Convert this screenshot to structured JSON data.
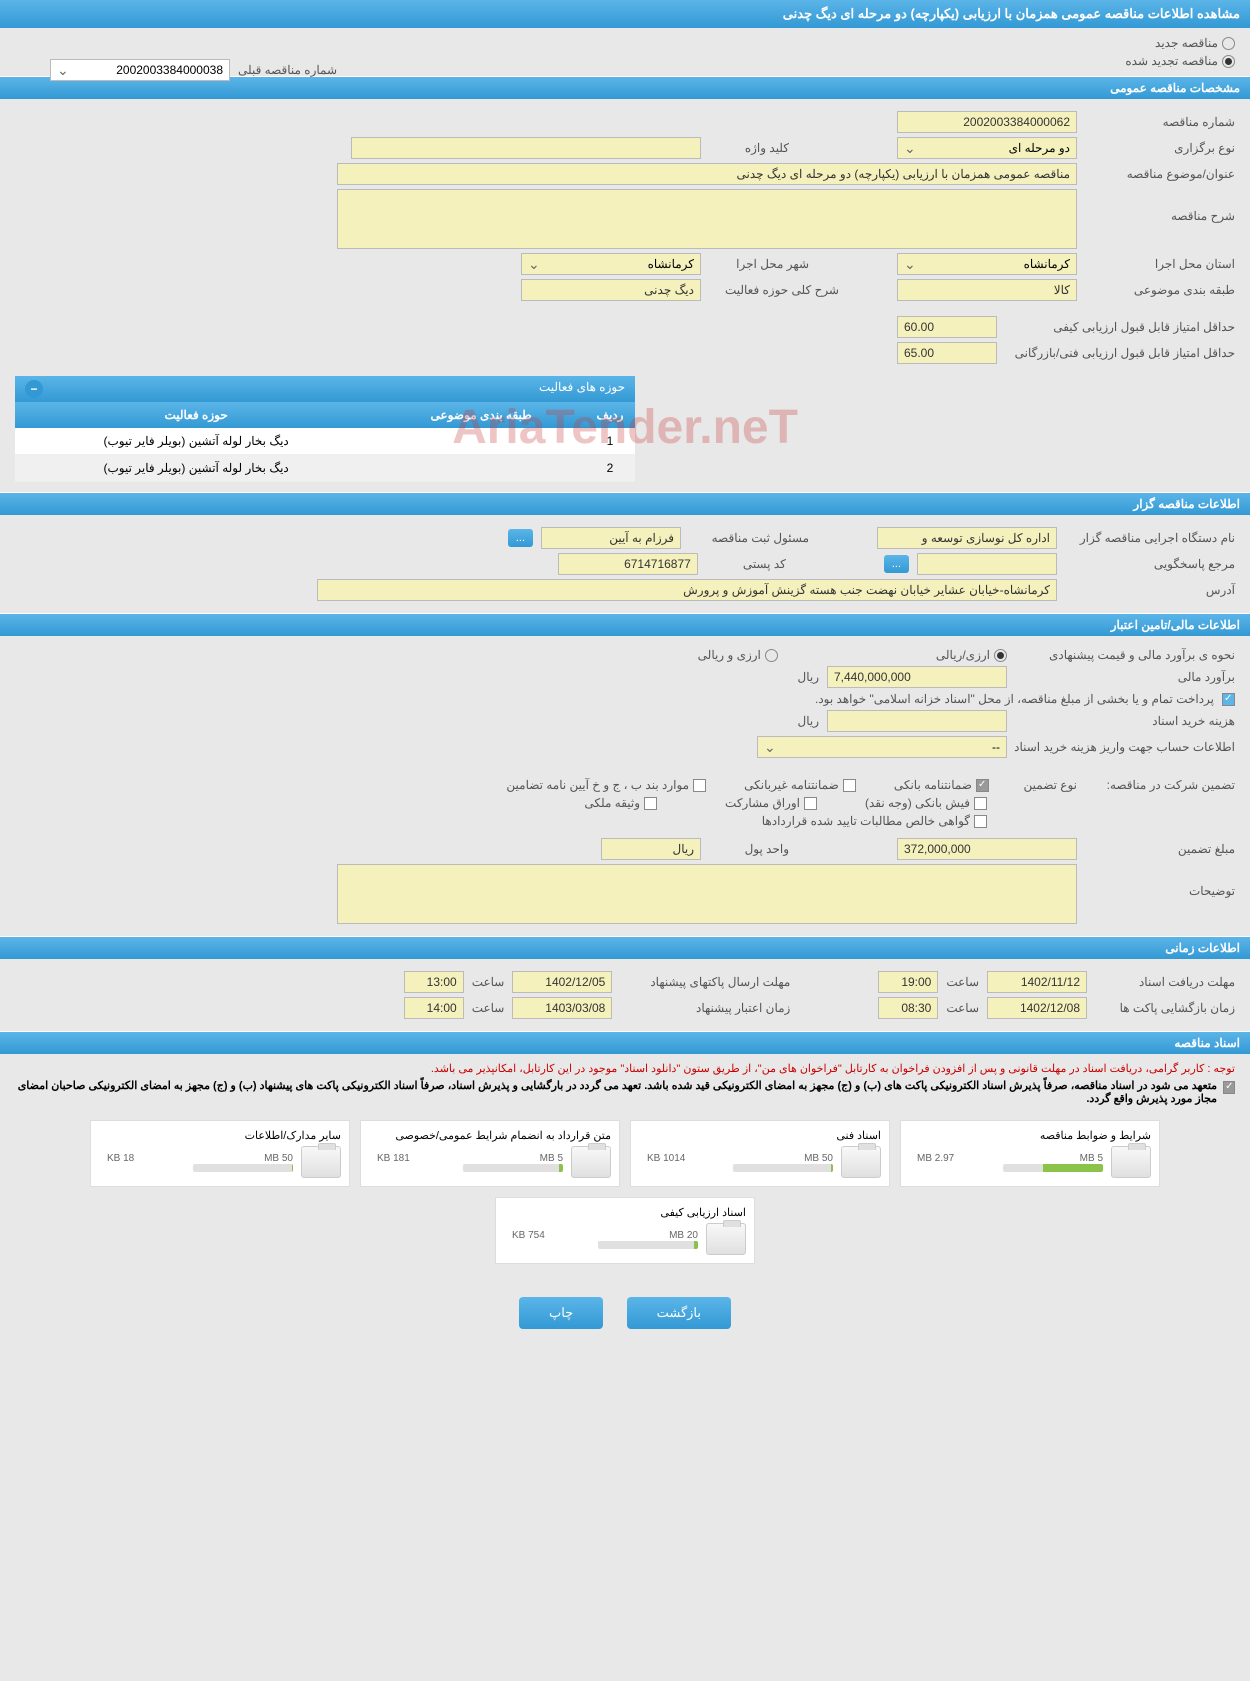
{
  "header": {
    "title": "مشاهده اطلاعات مناقصه عمومی همزمان با ارزیابی (یکپارچه) دو مرحله ای دیگ چدنی"
  },
  "tender_type": {
    "new_label": "مناقصه جدید",
    "renewed_label": "مناقصه تجدید شده",
    "selected": "renewed",
    "prev_number_label": "شماره مناقصه قبلی",
    "prev_number_value": "2002003384000038"
  },
  "sections": {
    "general": "مشخصات مناقصه عمومی",
    "activities": "حوزه های فعالیت",
    "organizer": "اطلاعات مناقصه گزار",
    "financial": "اطلاعات مالی/تامین اعتبار",
    "timing": "اطلاعات زمانی",
    "documents": "اسناد مناقصه"
  },
  "general": {
    "number_label": "شماره مناقصه",
    "number_value": "2002003384000062",
    "type_label": "نوع برگزاری",
    "type_value": "دو مرحله ای",
    "keyword_label": "کلید واژه",
    "keyword_value": "",
    "title_label": "عنوان/موضوع مناقصه",
    "title_value": "مناقصه عمومی همزمان با ارزیابی (یکپارچه) دو مرحله ای دیگ چدنی",
    "description_label": "شرح مناقصه",
    "description_value": "",
    "province_label": "استان محل اجرا",
    "province_value": "کرمانشاه",
    "city_label": "شهر محل اجرا",
    "city_value": "کرمانشاه",
    "category_label": "طبقه بندی موضوعی",
    "category_value": "کالا",
    "activity_desc_label": "شرح کلی حوزه فعالیت",
    "activity_desc_value": "دیگ چدنی",
    "quality_score_label": "حداقل امتیاز قابل قبول ارزیابی کیفی",
    "quality_score_value": "60.00",
    "tech_score_label": "حداقل امتیاز قابل قبول ارزیابی فنی/بازرگانی",
    "tech_score_value": "65.00"
  },
  "activities_table": {
    "col_row": "ردیف",
    "col_category": "طبقه بندی موضوعی",
    "col_activity": "حوزه فعالیت",
    "rows": [
      {
        "num": "1",
        "category": "",
        "activity": "دیگ بخار لوله آتشین (بویلر فایر تیوب)"
      },
      {
        "num": "2",
        "category": "",
        "activity": "دیگ بخار لوله آتشین (بویلر فایر تیوب)"
      }
    ]
  },
  "organizer": {
    "org_label": "نام دستگاه اجرایی مناقصه گزار",
    "org_value": "اداره کل نوسازی  توسعه و",
    "responsible_label": "مسئول ثبت مناقصه",
    "responsible_value": "فرزام به آیین",
    "contact_label": "مرجع پاسخگویی",
    "contact_value": "",
    "postal_label": "کد پستی",
    "postal_value": "6714716877",
    "address_label": "آدرس",
    "address_value": "کرمانشاه-خیابان عشایر خیابان نهضت جنب هسته گزینش آموزش و پرورش"
  },
  "financial": {
    "price_method_label": "نحوه ی برآورد مالی و قیمت پیشنهادی",
    "currency_ir_label": "ارزی/ریالی",
    "currency_foreign_label": "ارزی و ریالی",
    "estimate_label": "برآورد مالی",
    "estimate_value": "7,440,000,000",
    "estimate_unit": "ریال",
    "payment_note": "پرداخت تمام و یا بخشی از مبلغ مناقصه، از محل \"اسناد خزانه اسلامی\" خواهد بود.",
    "doc_cost_label": "هزینه خرید اسناد",
    "doc_cost_unit": "ریال",
    "account_label": "اطلاعات حساب جهت واریز هزینه خرید اسناد",
    "account_value": "--",
    "guarantee_label": "تضمین شرکت در مناقصه:",
    "guarantee_type_label": "نوع تضمین",
    "gt_bank": "ضمانتنامه بانکی",
    "gt_nonbank": "ضمانتنامه غیربانکی",
    "gt_cases": "موارد بند ب ، ج و خ آیین نامه تضامین",
    "gt_cash": "فیش بانکی (وجه نقد)",
    "gt_partnership": "اوراق مشارکت",
    "gt_property": "وثیقه ملکی",
    "gt_claims": "گواهی خالص مطالبات تایید شده قراردادها",
    "guarantee_amount_label": "مبلغ تضمین",
    "guarantee_amount_value": "372,000,000",
    "currency_unit_label": "واحد پول",
    "currency_unit_value": "ریال",
    "notes_label": "توضیحات",
    "notes_value": ""
  },
  "timing": {
    "receive_deadline_label": "مهلت دریافت اسناد",
    "receive_date": "1402/11/12",
    "receive_time_label": "ساعت",
    "receive_time": "19:00",
    "send_deadline_label": "مهلت ارسال پاکتهای پیشنهاد",
    "send_date": "1402/12/05",
    "send_time_label": "ساعت",
    "send_time": "13:00",
    "opening_label": "زمان بازگشایی پاکت ها",
    "opening_date": "1402/12/08",
    "opening_time_label": "ساعت",
    "opening_time": "08:30",
    "validity_label": "زمان اعتبار پیشنهاد",
    "validity_date": "1403/03/08",
    "validity_time_label": "ساعت",
    "validity_time": "14:00"
  },
  "documents": {
    "warning": "توجه : کاربر گرامی، دریافت اسناد در مهلت قانونی و پس از افزودن فراخوان به کارتابل \"فراخوان های من\"، از طریق ستون \"دانلود اسناد\" موجود در این کارتابل، امکانپذیر می باشد.",
    "commitment": "متعهد می شود در اسناد مناقصه، صرفاً پذیرش اسناد الکترونیکی پاکت های (ب) و (ج) مجهز به امضای الکترونیکی قید شده باشد. تعهد می گردد در بارگشایی و پذیرش اسناد، صرفاً اسناد الکترونیکی پاکت های پیشنهاد (ب) و (ج) مجهز به امضای الکترونیکی صاحبان امضای مجاز مورد پذیرش واقع گردد.",
    "files": [
      {
        "name": "شرایط و ضوابط مناقصه",
        "size": "2.97 MB",
        "limit": "5 MB",
        "progress": 60
      },
      {
        "name": "اسناد فنی",
        "size": "1014 KB",
        "limit": "50 MB",
        "progress": 2
      },
      {
        "name": "متن قرارداد به انضمام شرایط عمومی/خصوصی",
        "size": "181 KB",
        "limit": "5 MB",
        "progress": 4
      },
      {
        "name": "سایر مدارک/اطلاعات",
        "size": "18 KB",
        "limit": "50 MB",
        "progress": 1
      },
      {
        "name": "اسناد ارزیابی کیفی",
        "size": "754 KB",
        "limit": "20 MB",
        "progress": 4
      }
    ]
  },
  "buttons": {
    "back": "بازگشت",
    "print": "چاپ",
    "more": "..."
  },
  "watermark": "AriaTender.neT",
  "colors": {
    "header_bg": "#3399d4",
    "field_bg": "#f5f1bd",
    "page_bg": "#e8e8e8"
  }
}
